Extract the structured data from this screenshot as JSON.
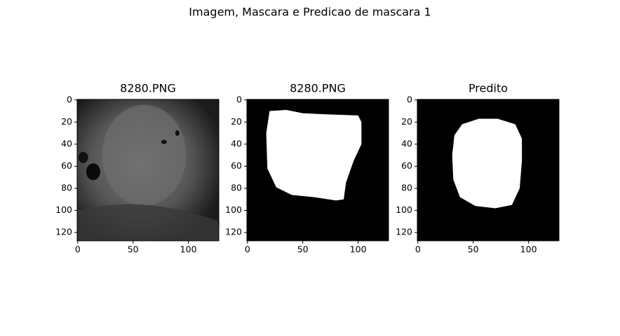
{
  "title": "Imagem, Mascara e Predicao de mascara 1",
  "chart_data": [
    {
      "type": "image",
      "title": "8280.PNG",
      "xlim": [
        -0.5,
        127.5
      ],
      "ylim": [
        127.5,
        -0.5
      ],
      "xticks": [
        0,
        50,
        100
      ],
      "yticks": [
        0,
        20,
        40,
        60,
        80,
        100,
        120
      ]
    },
    {
      "type": "image",
      "title": "8280.PNG",
      "xlim": [
        -0.5,
        127.5
      ],
      "ylim": [
        127.5,
        -0.5
      ],
      "xticks": [
        0,
        50,
        100
      ],
      "yticks": [
        0,
        20,
        40,
        60,
        80,
        100,
        120
      ]
    },
    {
      "type": "image",
      "title": "Predito",
      "xlim": [
        -0.5,
        127.5
      ],
      "ylim": [
        127.5,
        -0.5
      ],
      "xticks": [
        0,
        50,
        100
      ],
      "yticks": [
        0,
        20,
        40,
        60,
        80,
        100,
        120
      ]
    }
  ]
}
